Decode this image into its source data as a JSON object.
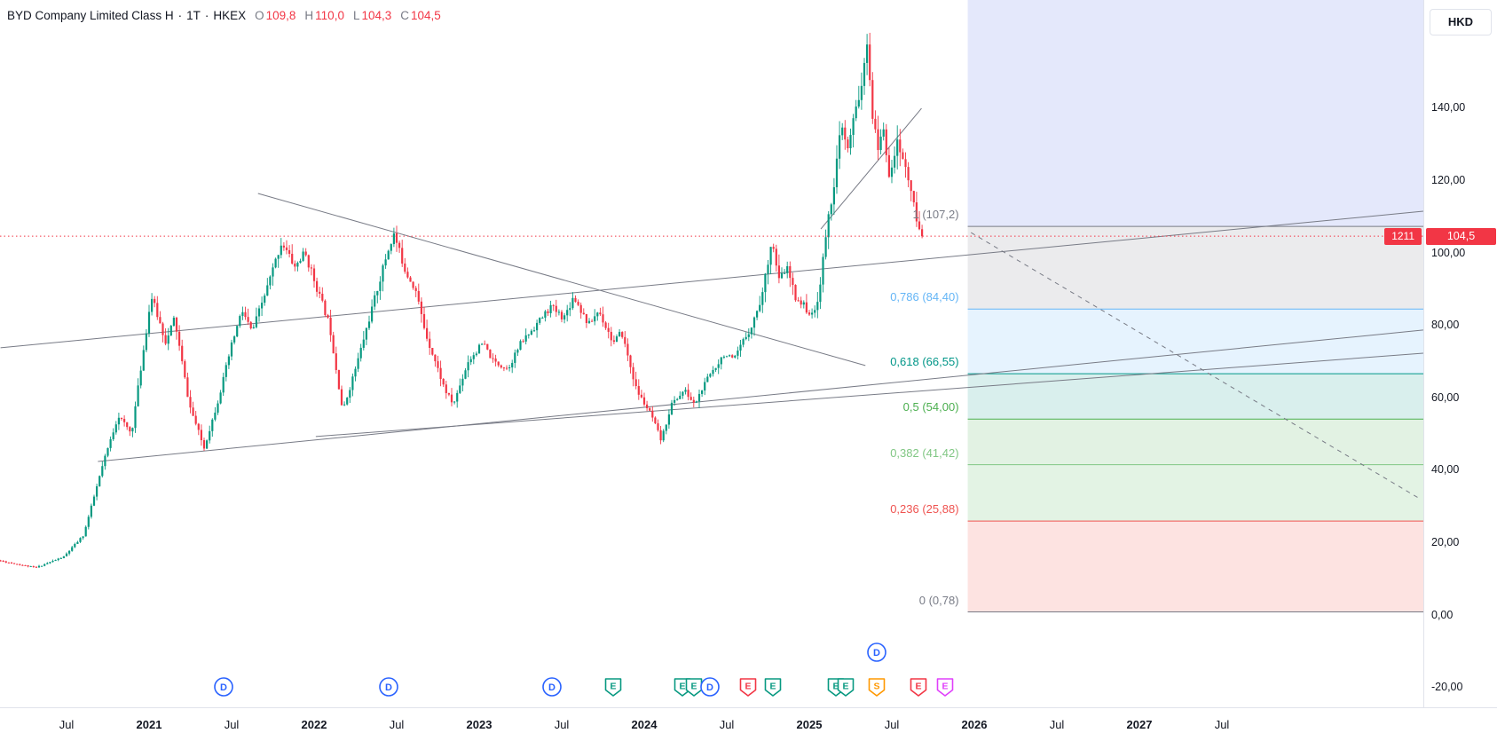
{
  "header": {
    "symbol": "BYD Company Limited Class H",
    "sep": "·",
    "timeframe": "1T",
    "exchange": "HKEX",
    "ohlc": {
      "o_label": "O",
      "o_value": "109,8",
      "h_label": "H",
      "h_value": "110,0",
      "l_label": "L",
      "l_value": "104,3",
      "c_label": "C",
      "c_value": "104,5"
    }
  },
  "price_axis": {
    "currency_button": "HKD",
    "last_price_badge": "104,5",
    "countdown_badge": "1211"
  },
  "colors": {
    "up_candle": "#089981",
    "down_candle": "#f23645",
    "trendline": "#787b86",
    "price_line": "#f23645",
    "badge_bg": "#f23645",
    "axis_text": "#131722"
  },
  "chart_data": {
    "type": "candlestick",
    "title": "BYD Company Limited Class H · 1T · HKEX",
    "currency": "HKD",
    "last_ohlc": {
      "open": 109.8,
      "high": 110.0,
      "low": 104.3,
      "close": 104.5
    },
    "current_price": 104.5,
    "y_axis": {
      "visible_range": [
        -25.5,
        169.7
      ],
      "ticks": [
        {
          "label": "140,00",
          "price": 140
        },
        {
          "label": "120,00",
          "price": 120
        },
        {
          "label": "100,00",
          "price": 100
        },
        {
          "label": "80,00",
          "price": 80
        },
        {
          "label": "60,00",
          "price": 60
        },
        {
          "label": "40,00",
          "price": 40
        },
        {
          "label": "20,00",
          "price": 20
        },
        {
          "label": "0,00",
          "price": 0
        },
        {
          "label": "-20,00",
          "price": -20
        }
      ]
    },
    "x_axis": {
      "labels": [
        {
          "label": "Jul",
          "t": 2020.5
        },
        {
          "label": "2021",
          "t": 2021
        },
        {
          "label": "Jul",
          "t": 2021.5
        },
        {
          "label": "2022",
          "t": 2022
        },
        {
          "label": "Jul",
          "t": 2022.5
        },
        {
          "label": "2023",
          "t": 2023
        },
        {
          "label": "Jul",
          "t": 2023.5
        },
        {
          "label": "2024",
          "t": 2024
        },
        {
          "label": "Jul",
          "t": 2024.5
        },
        {
          "label": "2025",
          "t": 2025
        },
        {
          "label": "Jul",
          "t": 2025.5
        },
        {
          "label": "2026",
          "t": 2026
        },
        {
          "label": "Jul",
          "t": 2026.5
        },
        {
          "label": "2027",
          "t": 2027
        },
        {
          "label": "Jul",
          "t": 2027.5
        }
      ]
    },
    "price_waypoints": [
      [
        2020.1,
        15
      ],
      [
        2020.33,
        13
      ],
      [
        2020.5,
        16
      ],
      [
        2020.62,
        22
      ],
      [
        2020.74,
        42
      ],
      [
        2020.83,
        55
      ],
      [
        2020.91,
        50
      ],
      [
        2021.03,
        88
      ],
      [
        2021.12,
        75
      ],
      [
        2021.17,
        82
      ],
      [
        2021.26,
        58
      ],
      [
        2021.35,
        46
      ],
      [
        2021.44,
        60
      ],
      [
        2021.52,
        75
      ],
      [
        2021.58,
        84
      ],
      [
        2021.64,
        78
      ],
      [
        2021.73,
        90
      ],
      [
        2021.82,
        103
      ],
      [
        2021.9,
        96
      ],
      [
        2021.96,
        100
      ],
      [
        2022.05,
        88
      ],
      [
        2022.11,
        80
      ],
      [
        2022.19,
        56
      ],
      [
        2022.28,
        70
      ],
      [
        2022.37,
        85
      ],
      [
        2022.46,
        100
      ],
      [
        2022.5,
        105
      ],
      [
        2022.57,
        95
      ],
      [
        2022.63,
        90
      ],
      [
        2022.69,
        78
      ],
      [
        2022.75,
        70
      ],
      [
        2022.81,
        62
      ],
      [
        2022.86,
        58
      ],
      [
        2022.95,
        70
      ],
      [
        2023.04,
        75
      ],
      [
        2023.1,
        70
      ],
      [
        2023.19,
        68
      ],
      [
        2023.27,
        75
      ],
      [
        2023.36,
        80
      ],
      [
        2023.45,
        85
      ],
      [
        2023.53,
        82
      ],
      [
        2023.59,
        88
      ],
      [
        2023.68,
        80
      ],
      [
        2023.74,
        84
      ],
      [
        2023.83,
        75
      ],
      [
        2023.88,
        78
      ],
      [
        2023.97,
        62
      ],
      [
        2024.06,
        55
      ],
      [
        2024.12,
        48
      ],
      [
        2024.18,
        58
      ],
      [
        2024.26,
        62
      ],
      [
        2024.32,
        58
      ],
      [
        2024.41,
        66
      ],
      [
        2024.5,
        72
      ],
      [
        2024.56,
        70
      ],
      [
        2024.61,
        75
      ],
      [
        2024.67,
        80
      ],
      [
        2024.73,
        88
      ],
      [
        2024.79,
        104
      ],
      [
        2024.83,
        92
      ],
      [
        2024.88,
        96
      ],
      [
        2024.93,
        88
      ],
      [
        2024.99,
        85
      ],
      [
        2025.04,
        82
      ],
      [
        2025.08,
        90
      ],
      [
        2025.12,
        106
      ],
      [
        2025.17,
        120
      ],
      [
        2025.21,
        135
      ],
      [
        2025.25,
        128
      ],
      [
        2025.3,
        140
      ],
      [
        2025.34,
        148
      ],
      [
        2025.37,
        157
      ],
      [
        2025.4,
        138
      ],
      [
        2025.43,
        128
      ],
      [
        2025.46,
        135
      ],
      [
        2025.5,
        122
      ],
      [
        2025.55,
        130
      ],
      [
        2025.59,
        125
      ],
      [
        2025.63,
        118
      ],
      [
        2025.66,
        110
      ],
      [
        2025.69,
        104.5
      ]
    ],
    "fib_retracement": {
      "start_t": 2025.96,
      "levels": [
        {
          "ratio": 1,
          "price": 107.2,
          "label": "1 (107,2)",
          "color": "#787b86"
        },
        {
          "ratio": 0.786,
          "price": 84.4,
          "label": "0,786 (84,40)",
          "color": "#64b5f6"
        },
        {
          "ratio": 0.618,
          "price": 66.55,
          "label": "0,618 (66,55)",
          "color": "#009688"
        },
        {
          "ratio": 0.5,
          "price": 54.0,
          "label": "0,5 (54,00)",
          "color": "#4caf50"
        },
        {
          "ratio": 0.382,
          "price": 41.42,
          "label": "0,382 (41,42)",
          "color": "#81c784"
        },
        {
          "ratio": 0.236,
          "price": 25.88,
          "label": "0,236 (25,88)",
          "color": "#ef5350"
        },
        {
          "ratio": 0,
          "price": 0.78,
          "label": "0 (0,78)",
          "color": "#787b86"
        }
      ],
      "bands": [
        {
          "from": null,
          "to": 107.2,
          "color": "rgba(72,101,227,0.15)"
        },
        {
          "from": 107.2,
          "to": 84.4,
          "color": "rgba(120,123,134,0.15)"
        },
        {
          "from": 84.4,
          "to": 66.55,
          "color": "rgba(100,181,246,0.16)"
        },
        {
          "from": 66.55,
          "to": 54.0,
          "color": "rgba(0,150,136,0.15)"
        },
        {
          "from": 54.0,
          "to": 41.42,
          "color": "rgba(76,175,80,0.16)"
        },
        {
          "from": 41.42,
          "to": 25.88,
          "color": "rgba(129,199,132,0.22)"
        },
        {
          "from": 25.88,
          "to": 0.78,
          "color": "rgba(244,67,54,0.15)"
        }
      ]
    },
    "trendlines": [
      {
        "t1": 2021.66,
        "p1": 116.3,
        "t2": 2025.34,
        "p2": 68.8,
        "dashed": false
      },
      {
        "t1": 2025.07,
        "p1": 106.5,
        "t2": 2025.68,
        "p2": 139.8,
        "dashed": false
      },
      {
        "t1": 2020.1,
        "p1": 73.7,
        "t2": 2028.72,
        "p2": 111.4,
        "dashed": false
      },
      {
        "t1": 2020.69,
        "p1": 42.3,
        "t2": 2028.72,
        "p2": 78.6,
        "dashed": false
      },
      {
        "t1": 2022.01,
        "p1": 49.2,
        "t2": 2028.72,
        "p2": 72.2,
        "dashed": false
      },
      {
        "t1": 2025.98,
        "p1": 105.5,
        "t2": 2028.7,
        "p2": 32.0,
        "dashed": true
      }
    ]
  },
  "events": {
    "types": {
      "dividend": {
        "shape": "circle",
        "color": "#2962ff",
        "label": "D"
      },
      "earnings": {
        "shape": "shield",
        "color": "#089981",
        "label": "E"
      },
      "earnings_neg": {
        "shape": "shield",
        "color": "#f23645",
        "label": "E"
      },
      "split": {
        "shape": "shield",
        "color": "#ff9800",
        "label": "S"
      },
      "earnings_est": {
        "shape": "shield",
        "color": "#e040fb",
        "label": "E"
      }
    },
    "markers": [
      {
        "type": "dividend",
        "t": 2021.45,
        "row": 0
      },
      {
        "type": "dividend",
        "t": 2022.45,
        "row": 0
      },
      {
        "type": "dividend",
        "t": 2023.44,
        "row": 0
      },
      {
        "type": "earnings",
        "t": 2023.81,
        "row": 0
      },
      {
        "type": "earnings",
        "t": 2024.23,
        "row": 0
      },
      {
        "type": "earnings",
        "t": 2024.3,
        "row": 0
      },
      {
        "type": "dividend",
        "t": 2024.4,
        "row": 0
      },
      {
        "type": "earnings_neg",
        "t": 2024.63,
        "row": 0
      },
      {
        "type": "earnings",
        "t": 2024.78,
        "row": 0
      },
      {
        "type": "earnings",
        "t": 2025.16,
        "row": 0
      },
      {
        "type": "earnings",
        "t": 2025.22,
        "row": 0
      },
      {
        "type": "split",
        "t": 2025.41,
        "row": 0
      },
      {
        "type": "dividend",
        "t": 2025.41,
        "row": 1
      },
      {
        "type": "earnings_neg",
        "t": 2025.66,
        "row": 0
      },
      {
        "type": "earnings_est",
        "t": 2025.82,
        "row": 0
      }
    ]
  }
}
